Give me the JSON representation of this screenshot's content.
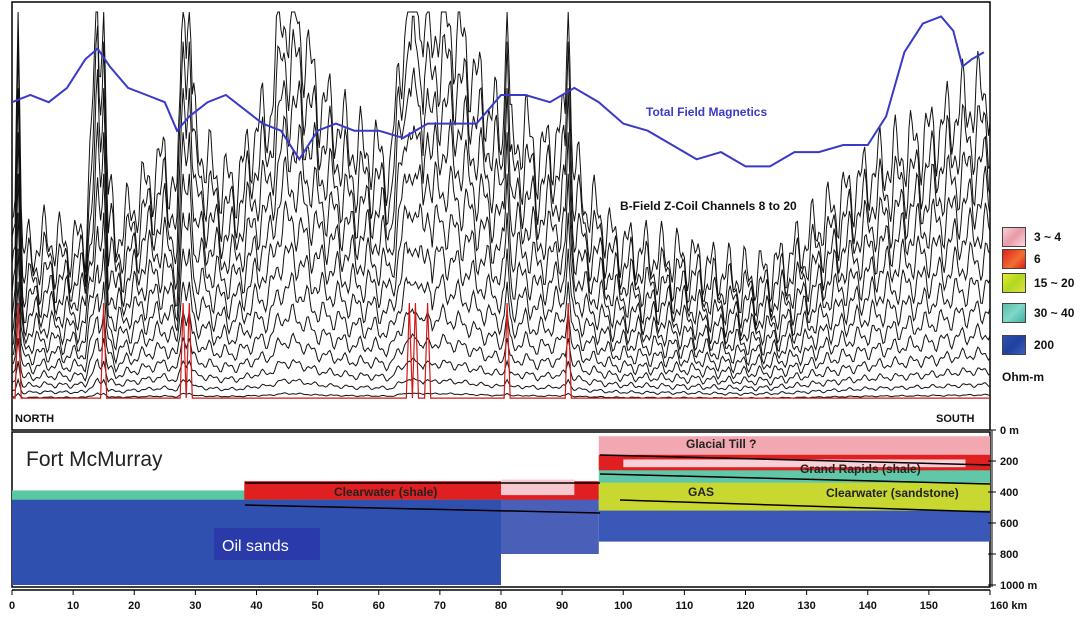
{
  "figure": {
    "top_panel": {
      "magnetics_label": "Total Field Magnetics",
      "bfield_label": "B-Field Z-Coil Channels 8 to 20",
      "left_label": "NORTH",
      "right_label": "SOUTH"
    },
    "bottom_panel": {
      "location_label": "Fort McMurray",
      "oil_sands_label": "Oil sands",
      "annotations": [
        "Glacial Till ?",
        "Grand Rapids (shale)",
        "Clearwater (shale)",
        "GAS",
        "Clearwater (sandstone)"
      ],
      "depth_ticks": [
        "0 m",
        "200",
        "400",
        "600",
        "800",
        "1000 m"
      ]
    },
    "legend": {
      "entries": [
        {
          "label": "3 ~ 4",
          "color": "#f2b8c0"
        },
        {
          "label": "6",
          "color": "#e02020"
        },
        {
          "label": "15 ~ 20",
          "color": "#d8e020"
        },
        {
          "label": "30 ~ 40",
          "color": "#60c8b8"
        },
        {
          "label": "200",
          "color": "#3050b0"
        }
      ],
      "unit": "Ohm-m"
    },
    "x_axis": {
      "ticks": [
        "0",
        "10",
        "20",
        "30",
        "40",
        "50",
        "60",
        "70",
        "80",
        "90",
        "100",
        "110",
        "120",
        "130",
        "140",
        "150",
        "160 km"
      ]
    }
  },
  "chart_data": [
    {
      "type": "line",
      "panel": "top",
      "series": [
        {
          "name": "Total Field Magnetics",
          "color": "#3a3ac8",
          "x": [
            0,
            3,
            6,
            9,
            12,
            14,
            16,
            19,
            22,
            25,
            27,
            29,
            32,
            35,
            38,
            41,
            44,
            47,
            50,
            53,
            56,
            60,
            64,
            68,
            72,
            76,
            80,
            84,
            88,
            92,
            96,
            100,
            104,
            108,
            112,
            116,
            120,
            124,
            128,
            132,
            136,
            140,
            143,
            146,
            149,
            152,
            154,
            155.5,
            157,
            159
          ],
          "y": [
            0.78,
            0.8,
            0.78,
            0.82,
            0.9,
            0.93,
            0.88,
            0.82,
            0.8,
            0.78,
            0.7,
            0.74,
            0.78,
            0.8,
            0.76,
            0.72,
            0.7,
            0.62,
            0.7,
            0.72,
            0.7,
            0.7,
            0.68,
            0.72,
            0.72,
            0.72,
            0.8,
            0.8,
            0.78,
            0.82,
            0.78,
            0.72,
            0.7,
            0.66,
            0.62,
            0.64,
            0.6,
            0.6,
            0.64,
            0.64,
            0.66,
            0.66,
            0.74,
            0.92,
            1.0,
            1.02,
            0.98,
            0.88,
            0.9,
            0.92
          ]
        }
      ],
      "envelope_series_name": "B-Field Z-Coil Channels 8 to 20",
      "envelope": {
        "x": [
          0,
          2,
          4,
          6,
          8,
          10,
          12,
          14,
          15,
          17,
          20,
          22,
          25,
          27,
          28,
          30,
          33,
          36,
          38,
          40,
          42,
          44,
          46,
          48,
          50,
          53,
          56,
          59,
          62,
          64,
          66,
          68,
          70,
          72,
          74,
          76,
          78,
          80,
          82,
          84,
          86,
          88,
          90,
          92,
          94,
          96,
          98,
          100,
          104,
          108,
          112,
          116,
          120,
          124,
          128,
          132,
          136,
          140,
          144,
          148,
          152,
          155,
          158,
          160
        ],
        "y": [
          0.42,
          0.38,
          0.4,
          0.42,
          0.4,
          0.4,
          0.42,
          0.98,
          0.6,
          0.42,
          0.5,
          0.55,
          0.62,
          0.52,
          0.9,
          0.68,
          0.58,
          0.55,
          0.6,
          0.7,
          0.72,
          0.98,
          1.0,
          0.9,
          0.78,
          0.72,
          0.65,
          0.64,
          0.6,
          0.95,
          1.0,
          0.9,
          1.0,
          0.95,
          0.9,
          0.82,
          0.75,
          0.7,
          0.65,
          0.7,
          0.62,
          0.65,
          0.7,
          0.6,
          0.5,
          0.48,
          0.42,
          0.4,
          0.38,
          0.37,
          0.36,
          0.33,
          0.32,
          0.33,
          0.38,
          0.45,
          0.52,
          0.58,
          0.62,
          0.66,
          0.7,
          0.75,
          0.78,
          0.8
        ]
      },
      "channels": 13,
      "spike_km": [
        1,
        15,
        28,
        29,
        65,
        66,
        68,
        81,
        91
      ]
    },
    {
      "type": "heatmap",
      "panel": "bottom",
      "title": "Fort McMurray",
      "xlabel": "km",
      "ylabel": "m",
      "xlim": [
        0,
        160
      ],
      "ylim": [
        0,
        1000
      ],
      "layers": [
        {
          "name": "Glacial Till ?",
          "x": [
            96,
            160
          ],
          "top": [
            40,
            150
          ],
          "bottom": [
            120,
            220
          ]
        },
        {
          "name": "Grand Rapids (shale)",
          "x": [
            96,
            160
          ],
          "depth": [
            160,
            260
          ]
        },
        {
          "name": "Clearwater (shale)",
          "x": [
            38,
            96
          ],
          "depth": [
            330,
            450
          ]
        },
        {
          "name": "Clearwater (sandstone)",
          "x": [
            96,
            160
          ],
          "depth": [
            340,
            520
          ]
        },
        {
          "name": "Oil sands",
          "x": [
            0,
            80
          ],
          "depth": [
            450,
            1000
          ]
        }
      ]
    }
  ]
}
